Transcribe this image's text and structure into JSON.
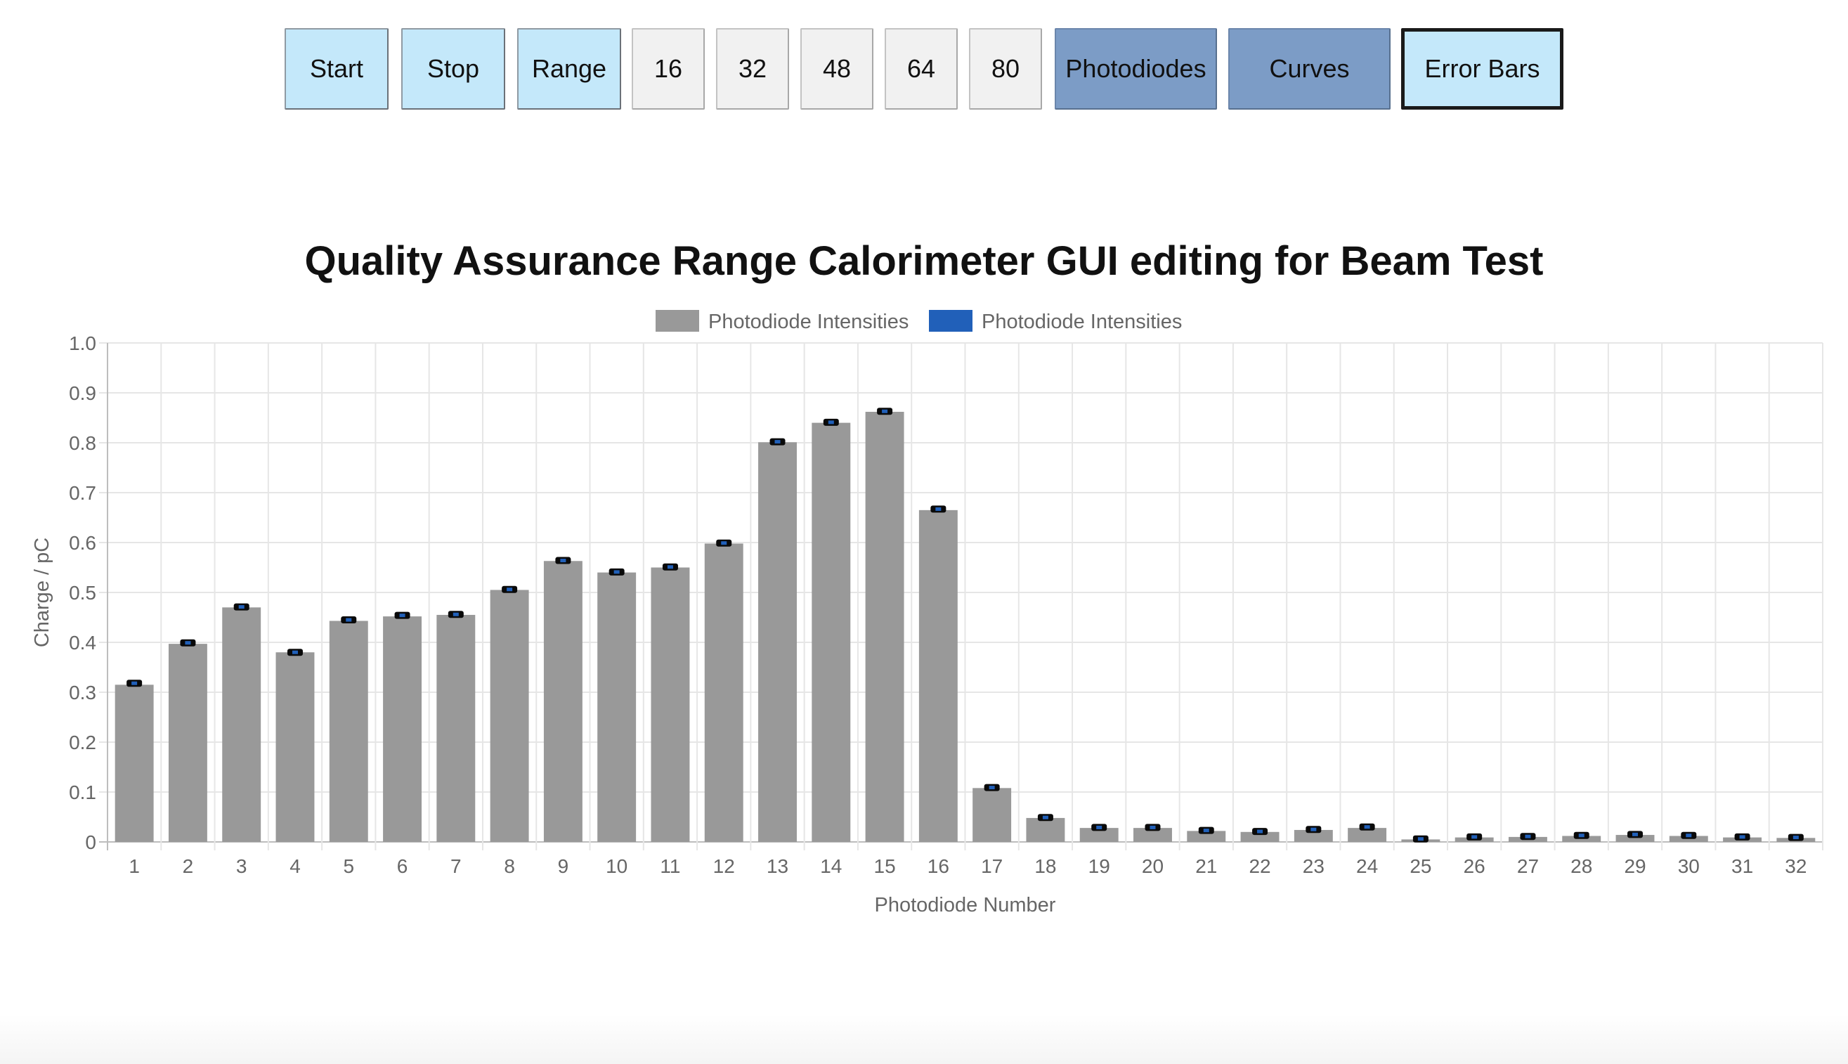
{
  "toolbar": {
    "buttons": [
      {
        "label": "Start",
        "style": "light"
      },
      {
        "label": "Stop",
        "style": "light"
      },
      {
        "label": "Range",
        "style": "light"
      },
      {
        "label": "16",
        "style": "plain"
      },
      {
        "label": "32",
        "style": "plain"
      },
      {
        "label": "48",
        "style": "plain"
      },
      {
        "label": "64",
        "style": "plain"
      },
      {
        "label": "80",
        "style": "plain"
      },
      {
        "label": "Photodiodes",
        "style": "dark"
      },
      {
        "label": "Curves",
        "style": "dark"
      },
      {
        "label": "Error Bars",
        "style": "light",
        "active": true
      }
    ]
  },
  "chart_data": {
    "type": "bar",
    "title": "Quality Assurance Range Calorimeter GUI editing for Beam Test",
    "xlabel": "Photodiode Number",
    "ylabel": "Charge / pC",
    "ylim": [
      0,
      1.0
    ],
    "yticks": [
      "0",
      "0.1",
      "0.2",
      "0.3",
      "0.4",
      "0.5",
      "0.6",
      "0.7",
      "0.8",
      "0.9",
      "1.0"
    ],
    "grid": true,
    "legend_position": "top-center",
    "categories": [
      "1",
      "2",
      "3",
      "4",
      "5",
      "6",
      "7",
      "8",
      "9",
      "10",
      "11",
      "12",
      "13",
      "14",
      "15",
      "16",
      "17",
      "18",
      "19",
      "20",
      "21",
      "22",
      "23",
      "24",
      "25",
      "26",
      "27",
      "28",
      "29",
      "30",
      "31",
      "32"
    ],
    "series": [
      {
        "name": "Photodiode Intensities",
        "kind": "bar",
        "color": "#999999",
        "values": [
          0.315,
          0.397,
          0.47,
          0.38,
          0.443,
          0.452,
          0.455,
          0.505,
          0.563,
          0.54,
          0.55,
          0.598,
          0.801,
          0.84,
          0.862,
          0.665,
          0.108,
          0.048,
          0.028,
          0.028,
          0.022,
          0.02,
          0.024,
          0.028,
          0.005,
          0.009,
          0.01,
          0.012,
          0.014,
          0.012,
          0.009,
          0.008
        ]
      },
      {
        "name": "Photodiode Intensities",
        "kind": "error-bars",
        "color": "#2160b9",
        "values": [
          0.318,
          0.399,
          0.471,
          0.38,
          0.445,
          0.454,
          0.456,
          0.506,
          0.564,
          0.541,
          0.551,
          0.599,
          0.802,
          0.841,
          0.863,
          0.667,
          0.109,
          0.049,
          0.029,
          0.029,
          0.023,
          0.021,
          0.025,
          0.03,
          0.006,
          0.01,
          0.011,
          0.013,
          0.015,
          0.013,
          0.01,
          0.009
        ]
      }
    ]
  }
}
